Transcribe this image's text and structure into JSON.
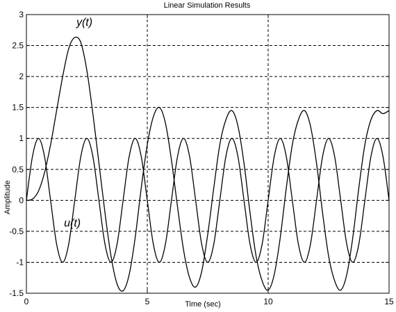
{
  "chart_data": {
    "type": "line",
    "title": "Linear Simulation Results",
    "xlabel": "Time (sec)",
    "ylabel": "Amplitude",
    "xlim": [
      0,
      15
    ],
    "ylim": [
      -1.5,
      3
    ],
    "xticks": [
      0,
      5,
      10,
      15
    ],
    "xtick_labels": [
      "0",
      "5",
      "10",
      "15"
    ],
    "yticks": [
      -1.5,
      -1,
      -0.5,
      0,
      0.5,
      1,
      1.5,
      2,
      2.5,
      3
    ],
    "ytick_labels": [
      "-1.5",
      "-1",
      "-0.5",
      "0",
      "0.5",
      "1",
      "1.5",
      "2",
      "2.5",
      "3"
    ],
    "grid": true,
    "annotations": [
      {
        "text": "y(t)",
        "x": 2.4,
        "y": 2.82
      },
      {
        "text": "u(t)",
        "x": 1.9,
        "y": -0.42
      }
    ],
    "series": [
      {
        "name": "u(t)",
        "x": [
          0,
          0.25,
          0.5,
          0.75,
          1,
          1.25,
          1.5,
          1.75,
          2,
          2.25,
          2.5,
          2.75,
          3,
          3.25,
          3.5,
          3.75,
          4,
          4.25,
          4.5,
          4.75,
          5,
          5.25,
          5.5,
          5.75,
          6,
          6.25,
          6.5,
          6.75,
          7,
          7.25,
          7.5,
          7.75,
          8,
          8.25,
          8.5,
          8.75,
          9,
          9.25,
          9.5,
          9.75,
          10,
          10.25,
          10.5,
          10.75,
          11,
          11.25,
          11.5,
          11.75,
          12,
          12.25,
          12.5,
          12.75,
          13,
          13.25,
          13.5,
          13.75,
          14,
          14.25,
          14.5,
          14.75,
          15
        ],
        "y": [
          0,
          0.707,
          1,
          0.707,
          0,
          -0.707,
          -1,
          -0.707,
          0,
          0.707,
          1,
          0.707,
          0,
          -0.707,
          -1,
          -0.707,
          0,
          0.707,
          1,
          0.707,
          0,
          -0.707,
          -1,
          -0.707,
          0,
          0.707,
          1,
          0.707,
          0,
          -0.707,
          -1,
          -0.707,
          0,
          0.707,
          1,
          0.707,
          0,
          -0.707,
          -1,
          -0.707,
          0,
          0.707,
          1,
          0.707,
          0,
          -0.707,
          -1,
          -0.707,
          0,
          0.707,
          1,
          0.707,
          0,
          -0.707,
          -1,
          -0.707,
          0,
          0.707,
          1,
          0.707,
          0
        ]
      },
      {
        "name": "y(t)",
        "x": [
          0,
          0.25,
          0.5,
          0.75,
          1,
          1.25,
          1.5,
          1.75,
          2,
          2.25,
          2.5,
          2.75,
          3,
          3.25,
          3.5,
          3.75,
          4,
          4.25,
          4.5,
          4.75,
          5,
          5.25,
          5.5,
          5.75,
          6,
          6.25,
          6.5,
          6.75,
          7,
          7.25,
          7.5,
          7.75,
          8,
          8.25,
          8.5,
          8.75,
          9,
          9.25,
          9.5,
          9.75,
          10,
          10.25,
          10.5,
          10.75,
          11,
          11.25,
          11.5,
          11.75,
          12,
          12.25,
          12.5,
          12.75,
          13,
          13.25,
          13.5,
          13.75,
          14,
          14.25,
          14.5,
          14.75,
          15
        ],
        "y": [
          0,
          0.02,
          0.15,
          0.45,
          0.9,
          1.45,
          2.0,
          2.45,
          2.63,
          2.55,
          2.1,
          1.4,
          0.6,
          -0.2,
          -0.9,
          -1.35,
          -1.46,
          -1.2,
          -0.6,
          0.2,
          0.9,
          1.35,
          1.5,
          1.25,
          0.65,
          -0.1,
          -0.8,
          -1.25,
          -1.4,
          -1.15,
          -0.55,
          0.2,
          0.9,
          1.3,
          1.45,
          1.2,
          0.6,
          -0.2,
          -0.9,
          -1.3,
          -1.45,
          -1.2,
          -0.6,
          0.2,
          0.9,
          1.3,
          1.45,
          1.2,
          0.6,
          -0.2,
          -0.9,
          -1.3,
          -1.45,
          -1.2,
          -0.6,
          0.2,
          0.9,
          1.3,
          1.45,
          1.4,
          1.45
        ]
      }
    ]
  }
}
